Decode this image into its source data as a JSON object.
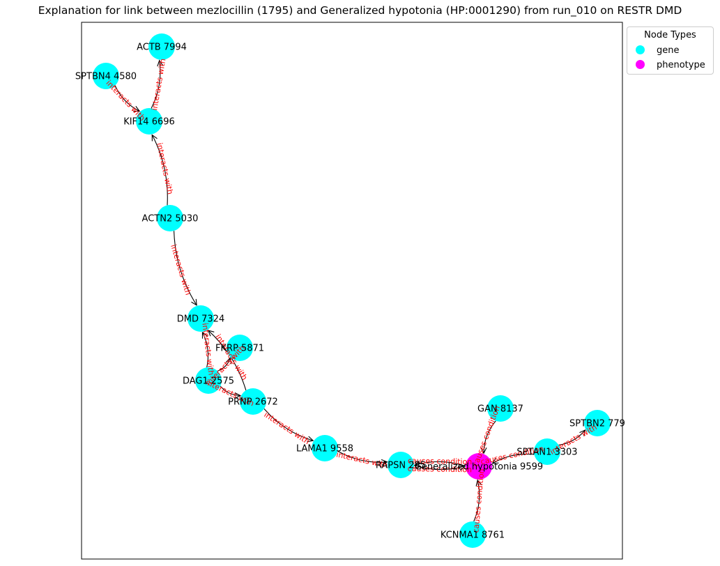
{
  "title": "Explanation for link between mezlocillin (1795) and Generalized hypotonia (HP:0001290) from run_010 on RESTR DMD",
  "legend": {
    "title": "Node Types",
    "items": [
      {
        "label": "gene",
        "color": "#00ffff"
      },
      {
        "label": "phenotype",
        "color": "#ff00ff"
      }
    ]
  },
  "colors": {
    "gene": "#00ffff",
    "phenotype": "#ff00ff",
    "edge": "#000000",
    "edge_label": "#ff0000"
  },
  "nodes": [
    {
      "id": "ACTB",
      "label": "ACTB 7994",
      "type": "gene"
    },
    {
      "id": "SPTBN4",
      "label": "SPTBN4 4580",
      "type": "gene"
    },
    {
      "id": "KIF14",
      "label": "KIF14 6696",
      "type": "gene"
    },
    {
      "id": "ACTN2",
      "label": "ACTN2 5030",
      "type": "gene"
    },
    {
      "id": "DMD",
      "label": "DMD 7324",
      "type": "gene"
    },
    {
      "id": "FKRP",
      "label": "FKRP 5871",
      "type": "gene"
    },
    {
      "id": "DAG1",
      "label": "DAG1 2575",
      "type": "gene"
    },
    {
      "id": "PRNP",
      "label": "PRNP 2672",
      "type": "gene"
    },
    {
      "id": "LAMA1",
      "label": "LAMA1 9558",
      "type": "gene"
    },
    {
      "id": "RAPSN",
      "label": "RAPSN 285",
      "type": "gene"
    },
    {
      "id": "HYPO",
      "label": "Generalized hypotonia 9599",
      "type": "phenotype"
    },
    {
      "id": "GAN",
      "label": "GAN 8137",
      "type": "gene"
    },
    {
      "id": "SPTAN1",
      "label": "SPTAN1 3303",
      "type": "gene"
    },
    {
      "id": "SPTBN2",
      "label": "SPTBN2 779",
      "type": "gene"
    },
    {
      "id": "KCNMA1",
      "label": "KCNMA1 8761",
      "type": "gene"
    }
  ],
  "edges": [
    {
      "source": "SPTBN4",
      "target": "KIF14",
      "label": "interacts with"
    },
    {
      "source": "KIF14",
      "target": "ACTB",
      "label": "interacts with"
    },
    {
      "source": "ACTN2",
      "target": "KIF14",
      "label": "interacts with"
    },
    {
      "source": "ACTN2",
      "target": "DMD",
      "label": "interacts with"
    },
    {
      "source": "DAG1",
      "target": "DMD",
      "label": "interacts with"
    },
    {
      "source": "PRNP",
      "target": "DMD",
      "label": "interacts with"
    },
    {
      "source": "DAG1",
      "target": "FKRP",
      "label": "interacts with"
    },
    {
      "source": "DAG1",
      "target": "PRNP",
      "label": "interacts with"
    },
    {
      "source": "PRNP",
      "target": "LAMA1",
      "label": "interacts with"
    },
    {
      "source": "LAMA1",
      "target": "RAPSN",
      "label": "interacts with"
    },
    {
      "source": "RAPSN",
      "target": "HYPO",
      "label": "causes condition"
    },
    {
      "source": "HYPO",
      "target": "RAPSN",
      "label": "causes condition"
    },
    {
      "source": "GAN",
      "target": "HYPO",
      "label": "causes condition"
    },
    {
      "source": "SPTAN1",
      "target": "HYPO",
      "label": "causes condition"
    },
    {
      "source": "SPTAN1",
      "target": "SPTBN2",
      "label": "interacts with"
    },
    {
      "source": "KCNMA1",
      "target": "HYPO",
      "label": "causes condition"
    }
  ]
}
